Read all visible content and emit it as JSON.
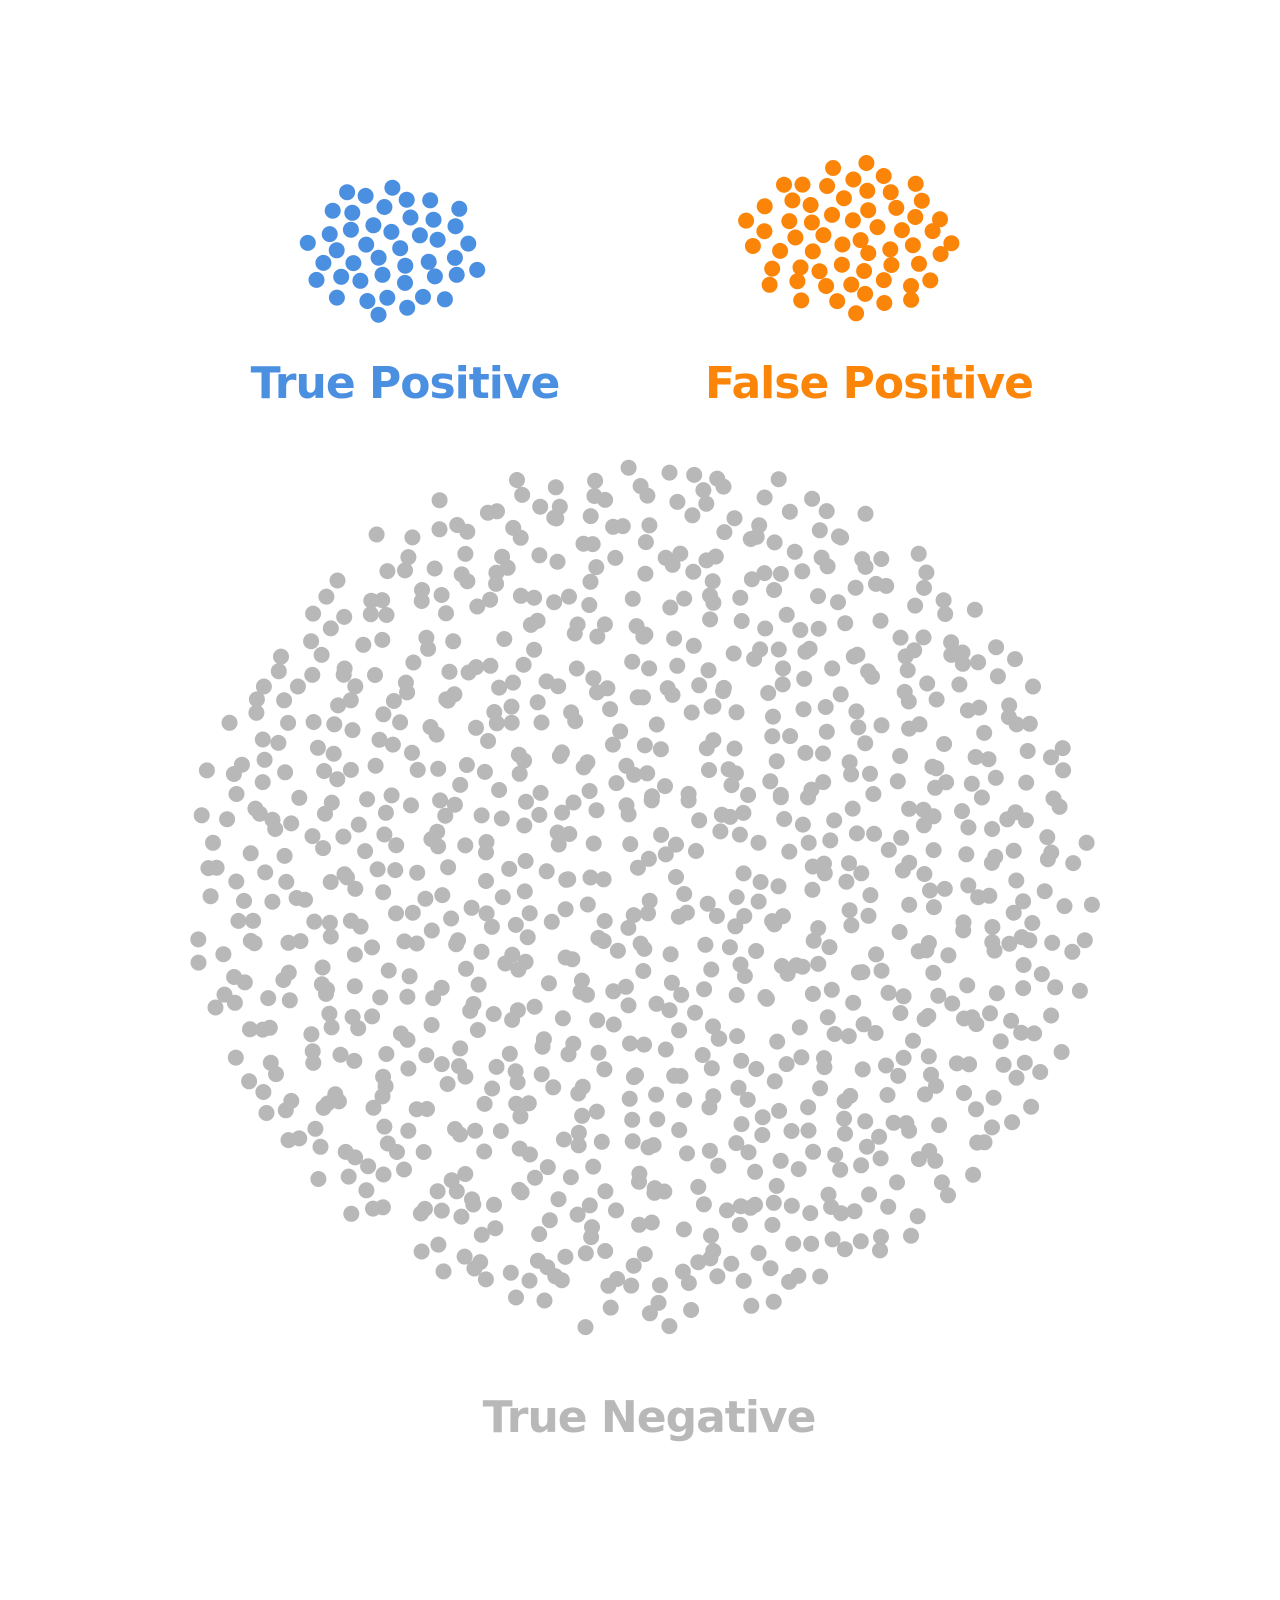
{
  "categories": [
    {
      "key": "tp",
      "label": "True Positive",
      "color": "#4a8fe0",
      "count": 44
    },
    {
      "key": "fp",
      "label": "False Positive",
      "color": "#fb8509",
      "count": 60
    },
    {
      "key": "tn",
      "label": "True Negative",
      "color": "#b8b8b8",
      "count": 1000
    }
  ]
}
